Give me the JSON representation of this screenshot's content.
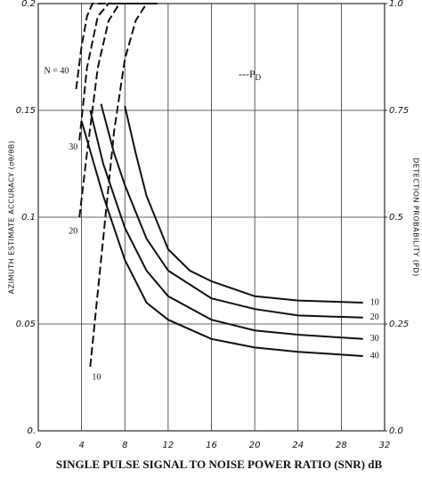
{
  "chart_data": {
    "type": "line",
    "xlabel": "SINGLE PULSE SIGNAL TO NOISE POWER RATIO (SNR) dB",
    "ylabel": "AZIMUTH ESTIMATE ACCURACY (σθ/θB)",
    "y2label": "DETECTION PROBABILITY (PD)",
    "annotation": "---P",
    "annotation_sub": "D",
    "xlim": [
      0,
      32
    ],
    "xticks": [
      0,
      4,
      8,
      12,
      16,
      20,
      24,
      28,
      32
    ],
    "ylim": [
      0,
      0.2
    ],
    "yticks": [
      {
        "value": 0,
        "label": "0."
      },
      0.05,
      0.1,
      0.15,
      0.2
    ],
    "y2lim": [
      0,
      1
    ],
    "y2ticks": [
      {
        "value": 0,
        "label": "0.0"
      },
      0.25,
      0.5,
      0.75,
      {
        "value": 1,
        "label": "1.0"
      }
    ],
    "grid": true,
    "series": [
      {
        "name": "10",
        "color": "#111",
        "style": "solid",
        "x": [
          8,
          9,
          10,
          12,
          14,
          16,
          20,
          24,
          30
        ],
        "values": [
          0.152,
          0.13,
          0.11,
          0.085,
          0.075,
          0.07,
          0.063,
          0.061,
          0.06
        ]
      },
      {
        "name": "20",
        "color": "#111",
        "style": "solid",
        "x": [
          5.8,
          7,
          8,
          10,
          12,
          16,
          20,
          24,
          30
        ],
        "values": [
          0.153,
          0.13,
          0.115,
          0.09,
          0.075,
          0.062,
          0.057,
          0.054,
          0.053
        ]
      },
      {
        "name": "30",
        "color": "#111",
        "style": "solid",
        "x": [
          4.8,
          6,
          8,
          10,
          12,
          16,
          20,
          24,
          30
        ],
        "values": [
          0.15,
          0.125,
          0.095,
          0.075,
          0.063,
          0.052,
          0.047,
          0.045,
          0.043
        ]
      },
      {
        "name": "40",
        "color": "#111",
        "style": "solid",
        "x": [
          4,
          6,
          8,
          10,
          12,
          16,
          20,
          24,
          30
        ],
        "values": [
          0.145,
          0.11,
          0.08,
          0.06,
          0.052,
          0.043,
          0.039,
          0.037,
          0.035
        ]
      },
      {
        "name": "N = 40",
        "color": "#111",
        "style": "dashed",
        "axis": "y2",
        "x": [
          3.5,
          4,
          4.5,
          5,
          10
        ],
        "values": [
          0.8,
          0.9,
          0.97,
          1.0,
          1.0
        ]
      },
      {
        "name": "30",
        "color": "#111",
        "style": "dashed",
        "axis": "y2",
        "x": [
          3.8,
          4.5,
          5.5,
          6.5,
          10
        ],
        "values": [
          0.68,
          0.85,
          0.97,
          1.0,
          1.0
        ]
      },
      {
        "name": "20",
        "color": "#111",
        "style": "dashed",
        "axis": "y2",
        "x": [
          3.8,
          4.5,
          5.5,
          6.5,
          7.5,
          11
        ],
        "values": [
          0.5,
          0.65,
          0.85,
          0.96,
          1.0,
          1.0
        ]
      },
      {
        "name": "10",
        "color": "#111",
        "style": "dashed",
        "axis": "y2",
        "x": [
          4.8,
          6,
          7,
          8,
          9,
          10,
          11
        ],
        "values": [
          0.15,
          0.45,
          0.7,
          0.87,
          0.96,
          1.0,
          1.0
        ]
      }
    ]
  }
}
